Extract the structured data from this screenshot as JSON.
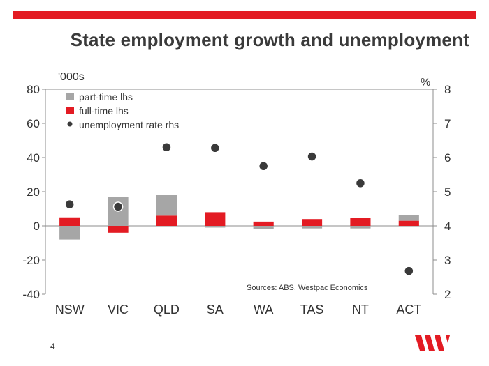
{
  "page": {
    "title": "State employment growth and unemployment",
    "page_number": "4"
  },
  "colors": {
    "brand_red": "#e31b23",
    "part_time": "#a6a6a6",
    "full_time": "#e31b23",
    "unemployment": "#3a3a3a",
    "title_text": "#3a3a3a"
  },
  "logo": {
    "icon": "westpac-w-logo-icon"
  },
  "chart_data": {
    "type": "bar",
    "title": "State employment growth and unemployment",
    "categories": [
      "NSW",
      "VIC",
      "QLD",
      "SA",
      "WA",
      "TAS",
      "NT",
      "ACT"
    ],
    "series": [
      {
        "name": "part-time lhs",
        "axis": "left",
        "kind": "bar",
        "values": [
          -8,
          17,
          12,
          -1,
          -2,
          -1.5,
          -1.5,
          3.5
        ]
      },
      {
        "name": "full-time lhs",
        "axis": "left",
        "kind": "bar",
        "values": [
          5,
          -4,
          6,
          8,
          2.5,
          4,
          4.5,
          3
        ]
      },
      {
        "name": "unemployment rate rhs",
        "axis": "right",
        "kind": "scatter",
        "values": [
          4.63,
          4.56,
          6.3,
          6.28,
          5.75,
          6.03,
          5.25,
          2.68
        ]
      }
    ],
    "left_axis": {
      "label": "'000s",
      "range": [
        -40,
        80
      ],
      "ticks": [
        "80",
        "60",
        "40",
        "20",
        "0",
        "-20",
        "-40"
      ]
    },
    "right_axis": {
      "label": "%",
      "range": [
        2,
        8
      ],
      "ticks": [
        "8",
        "7",
        "6",
        "5",
        "4",
        "3",
        "2"
      ]
    },
    "legend": [
      "part-time lhs",
      "full-time lhs",
      "unemployment rate rhs"
    ],
    "legend_position": "top-left",
    "grid": false,
    "source_note": "Sources: ABS, Westpac Economics"
  }
}
